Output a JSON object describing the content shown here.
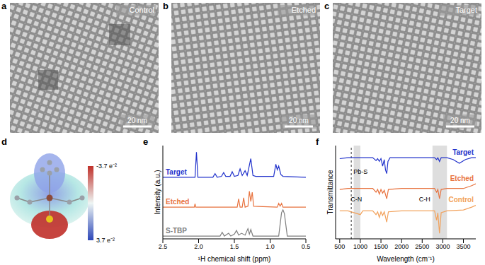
{
  "panels": [
    {
      "panel": "a",
      "label": "Control",
      "scale_bar": "20 nm"
    },
    {
      "panel": "b",
      "label": "Etched",
      "scale_bar": "20 nm"
    },
    {
      "panel": "c",
      "label": "Target",
      "scale_bar": "20 nm"
    }
  ],
  "esp_map": {
    "panel": "d",
    "colorbar": {
      "range": [
        -3.7,
        3.7
      ],
      "ticks": [
        {
          "value": -3.7,
          "label": "-3.7 e⁻²"
        },
        {
          "value": 3.7,
          "label": "3.7 e⁻²"
        }
      ]
    }
  },
  "chart_data": [
    {
      "panel": "e",
      "type": "line",
      "x_label": "¹H chemical shift (ppm)",
      "y_label": "Intensity (a.u.)",
      "xlim": [
        2.5,
        0.5
      ],
      "xticks": [
        2.5,
        {
          "value": 2,
          "label": "2.0"
        },
        1.5,
        {
          "value": 1,
          "label": "1.0"
        },
        0.5
      ],
      "ylim": [
        0,
        10
      ],
      "tick_labels": "x",
      "series": [
        {
          "name": "Target",
          "color": "#2233cc",
          "x": [
            2.5,
            2.05,
            2.03,
            2.01,
            1.8,
            1.77,
            1.74,
            1.68,
            1.65,
            1.62,
            1.56,
            1.53,
            1.5,
            1.45,
            1.42,
            1.39,
            1.35,
            1.32,
            1.27,
            1.24,
            1.2,
            0.95,
            0.92,
            0.9,
            0.88,
            0.85,
            0.82,
            0.5
          ],
          "values": [
            6.6,
            6.6,
            9.3,
            6.6,
            6.6,
            7.0,
            6.6,
            6.7,
            7.1,
            6.7,
            6.7,
            7.2,
            6.7,
            6.8,
            7.5,
            6.8,
            7.3,
            6.8,
            8.6,
            6.8,
            6.7,
            6.7,
            8.0,
            7.4,
            7.8,
            6.9,
            6.7,
            6.6
          ]
        },
        {
          "name": "Etched",
          "color": "#e8733f",
          "x": [
            2.5,
            2.06,
            2.05,
            2.04,
            1.46,
            1.44,
            1.42,
            1.39,
            1.37,
            1.35,
            1.31,
            1.29,
            1.27,
            1.25,
            1.23,
            0.9,
            0.88,
            0.86,
            0.84,
            0.82,
            0.5
          ],
          "values": [
            3.4,
            3.4,
            3.75,
            3.4,
            3.4,
            4.3,
            3.4,
            3.4,
            4.4,
            3.4,
            3.5,
            5.1,
            4.0,
            5.0,
            3.5,
            3.4,
            3.8,
            3.5,
            3.8,
            3.4,
            3.4
          ]
        },
        {
          "name": "S-TBP",
          "color": "#7f7f7f",
          "x": [
            2.5,
            1.7,
            1.67,
            1.64,
            1.58,
            1.55,
            1.5,
            1.47,
            1.44,
            1.4,
            1.35,
            1.31,
            1.29,
            1.27,
            1.24,
            0.88,
            0.84,
            0.82,
            0.8,
            0.76,
            0.5
          ],
          "values": [
            0.3,
            0.3,
            0.7,
            0.3,
            0.6,
            0.3,
            0.5,
            0.9,
            0.4,
            0.6,
            0.4,
            1.1,
            0.5,
            1.0,
            0.3,
            0.3,
            2.8,
            3.1,
            2.7,
            0.3,
            0.3
          ]
        }
      ]
    },
    {
      "panel": "f",
      "type": "line",
      "x_label": "Wavelength (cm⁻¹)",
      "y_label": "Transmittance",
      "xlim": [
        400,
        3800
      ],
      "xticks": [
        500,
        1000,
        1500,
        2000,
        2500,
        3000,
        3500
      ],
      "ylim": [
        0,
        10
      ],
      "tick_labels": "x",
      "annotations": [
        {
          "text": "Pb-S",
          "x": 780,
          "line_style": "dashed"
        },
        {
          "text": "C-N",
          "x": [
            840,
            1000
          ]
        },
        {
          "text": "C-H",
          "x": [
            2750,
            3100
          ]
        }
      ],
      "series": [
        {
          "name": "Target",
          "color": "#2233cc",
          "x": [
            500,
            700,
            1000,
            1300,
            1380,
            1420,
            1460,
            1500,
            1540,
            1580,
            1610,
            1640,
            1670,
            1720,
            2000,
            2800,
            2850,
            2880,
            2920,
            2960,
            3100,
            3250,
            3400,
            3550,
            3700,
            3800
          ],
          "values": [
            8.6,
            8.7,
            8.7,
            8.7,
            8.4,
            8.6,
            8.3,
            8.6,
            7.8,
            8.5,
            7.4,
            7.0,
            8.3,
            8.7,
            8.7,
            8.7,
            8.5,
            8.7,
            8.3,
            8.7,
            8.7,
            8.5,
            8.1,
            8.5,
            8.7,
            8.7
          ]
        },
        {
          "name": "Etched",
          "color": "#e8733f",
          "x": [
            500,
            700,
            1000,
            1300,
            1380,
            1420,
            1460,
            1500,
            1540,
            1580,
            1640,
            1680,
            2000,
            2800,
            2850,
            2880,
            2920,
            2960,
            3100,
            3500,
            3700,
            3800
          ],
          "values": [
            5.3,
            5.4,
            5.4,
            5.4,
            5.0,
            5.3,
            4.8,
            5.3,
            4.9,
            5.2,
            4.3,
            5.3,
            5.4,
            5.4,
            5.0,
            5.3,
            4.3,
            5.3,
            5.4,
            5.4,
            5.7,
            5.9
          ]
        },
        {
          "name": "Control",
          "color": "#f2a25c",
          "x": [
            500,
            700,
            1000,
            1060,
            1300,
            1380,
            1420,
            1460,
            1500,
            1540,
            1580,
            1640,
            1680,
            2000,
            2800,
            2850,
            2880,
            2920,
            2960,
            3100,
            3500,
            3700,
            3800
          ],
          "values": [
            3.0,
            3.0,
            2.6,
            3.0,
            3.0,
            2.6,
            2.9,
            2.3,
            2.9,
            2.5,
            2.9,
            1.8,
            2.9,
            3.0,
            3.0,
            2.0,
            2.8,
            0.6,
            2.8,
            3.0,
            3.1,
            3.4,
            3.6
          ]
        }
      ]
    }
  ]
}
